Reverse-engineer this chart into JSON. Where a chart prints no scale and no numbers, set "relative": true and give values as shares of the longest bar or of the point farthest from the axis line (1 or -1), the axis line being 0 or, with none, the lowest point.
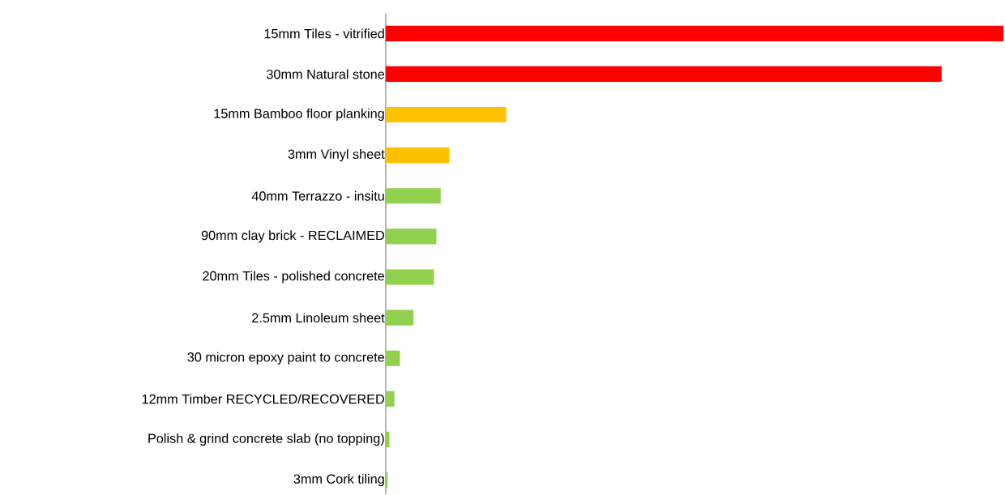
{
  "chart_data": {
    "type": "bar",
    "orientation": "horizontal",
    "relative": true,
    "categories": [
      "15mm Tiles - vitrified",
      "30mm Natural stone",
      "15mm Bamboo floor planking",
      "3mm Vinyl sheet",
      "40mm Terrazzo - insitu",
      "90mm clay brick - RECLAIMED",
      "20mm Tiles - polished concrete",
      "2.5mm Linoleum sheet",
      "30 micron epoxy paint to concrete",
      "12mm Timber RECYCLED/RECOVERED",
      "Polish & grind concrete slab (no topping)",
      "3mm Cork tiling"
    ],
    "values": [
      1,
      0.9,
      0.195,
      0.103,
      0.089,
      0.082,
      0.078,
      0.045,
      0.023,
      0.014,
      0.006,
      0.003
    ],
    "colors": [
      "#ff0000",
      "#ff0000",
      "#ffc000",
      "#ffc000",
      "#92d050",
      "#92d050",
      "#92d050",
      "#92d050",
      "#92d050",
      "#92d050",
      "#92d050",
      "#92d050"
    ]
  }
}
